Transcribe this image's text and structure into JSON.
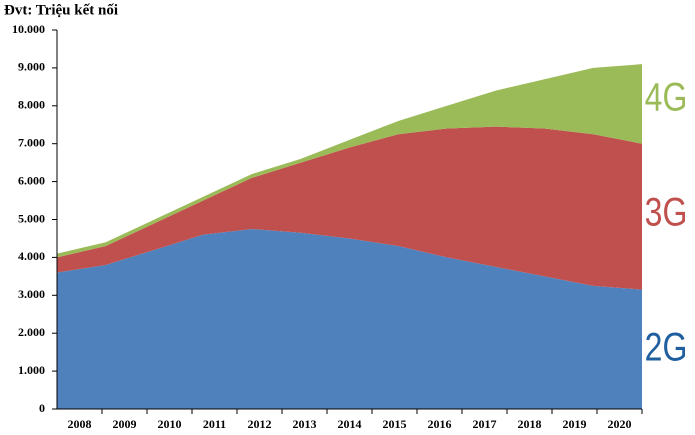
{
  "chart_data": {
    "type": "stacked-area",
    "title": "Đvt: Triệu kết nối",
    "categories": [
      "2008",
      "2009",
      "2010",
      "2011",
      "2012",
      "2013",
      "2014",
      "2015",
      "2016",
      "2017",
      "2018",
      "2019",
      "2020"
    ],
    "series": [
      {
        "name": "2G",
        "color": "#4f81bd",
        "label_color": "#1f5f9f",
        "values": [
          3600,
          3800,
          4200,
          4600,
          4750,
          4650,
          4500,
          4300,
          4000,
          3750,
          3500,
          3250,
          3150
        ]
      },
      {
        "name": "3G",
        "color": "#c0504d",
        "label_color": "#c0504d",
        "values": [
          400,
          500,
          700,
          900,
          1350,
          1850,
          2400,
          2950,
          3400,
          3700,
          3900,
          4000,
          3850
        ]
      },
      {
        "name": "4G",
        "color": "#9bbb59",
        "label_color": "#9bbb59",
        "values": [
          100,
          100,
          100,
          100,
          100,
          100,
          200,
          350,
          600,
          950,
          1300,
          1750,
          2100
        ]
      }
    ],
    "ylim": [
      0,
      10000
    ],
    "yticks": [
      0,
      {
        "value": 1000,
        "label": "1.000"
      },
      {
        "value": 2000,
        "label": "2.000"
      },
      {
        "value": 3000,
        "label": "3.000"
      },
      {
        "value": 4000,
        "label": "4.000"
      },
      {
        "value": 5000,
        "label": "5.000"
      },
      {
        "value": 6000,
        "label": "6.000"
      },
      {
        "value": 7000,
        "label": "7.000"
      },
      {
        "value": 8000,
        "label": "8.000"
      },
      {
        "value": 9000,
        "label": "9.000"
      },
      {
        "value": 10000,
        "label": "10.000"
      }
    ]
  }
}
